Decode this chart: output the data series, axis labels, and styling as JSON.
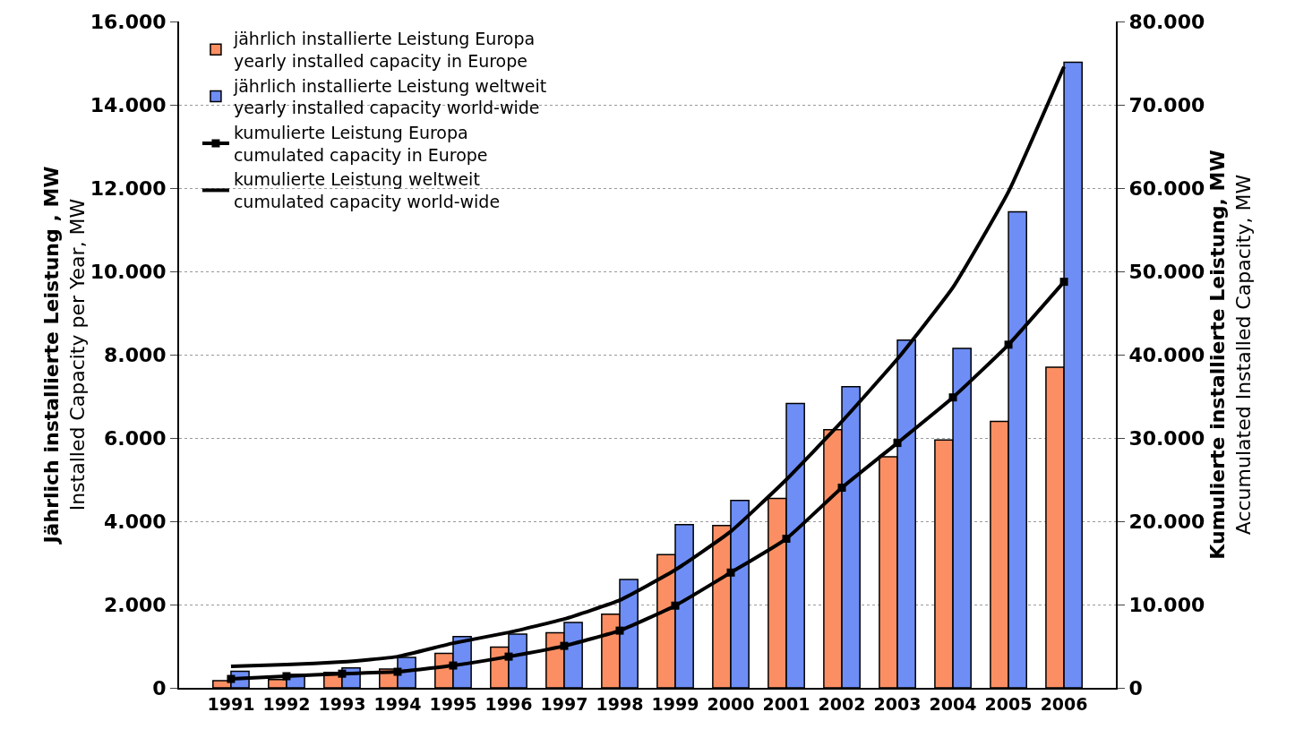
{
  "chart_data": {
    "type": "bar",
    "categories": [
      "1991",
      "1992",
      "1993",
      "1994",
      "1995",
      "1996",
      "1997",
      "1998",
      "1999",
      "2000",
      "2001",
      "2002",
      "2003",
      "2004",
      "2005",
      "2006"
    ],
    "series": [
      {
        "name": "jährlich installierte Leistung Europa\nyearly installed capacity in Europe",
        "color": "#fb8f63",
        "values": [
          170,
          200,
          370,
          450,
          830,
          980,
          1320,
          1770,
          3200,
          3900,
          4550,
          6200,
          5550,
          5950,
          6400,
          7700
        ]
      },
      {
        "name": "jährlich installierte Leistung weltweit\nyearly installed capacity world-wide",
        "color": "#6e8ef6",
        "values": [
          400,
          320,
          480,
          730,
          1230,
          1290,
          1570,
          2600,
          3920,
          4500,
          6830,
          7230,
          8350,
          8150,
          11430,
          15020
        ]
      },
      {
        "name": "kumulierte Leistung Europa\ncumulated capacity in Europe",
        "type": "line",
        "axis": "y2",
        "color": "#000000",
        "marker": "square",
        "values": [
          1070,
          1400,
          1700,
          1930,
          2680,
          3750,
          5040,
          6870,
          9870,
          13840,
          17900,
          24030,
          29400,
          34870,
          41200,
          48750
        ]
      },
      {
        "name": "kumulierte Leistung weltweit\ncumulated capacity world-wide",
        "type": "line",
        "axis": "y2",
        "color": "#000000",
        "marker": "none",
        "values": [
          2575,
          2790,
          3110,
          3750,
          5360,
          6650,
          8260,
          10520,
          14160,
          18780,
          25000,
          31970,
          39480,
          48070,
          59550,
          74570
        ]
      }
    ],
    "ylabel": "Jährlich installierte Leistung , MW\nInstalled Capacity per Year, MW",
    "y2label": "Kumulierte installierte Leistung, MW\nAccumulated Installed Capacity, MW",
    "ylim": [
      0,
      16000
    ],
    "yticks": [
      {
        "value": 0,
        "label": "0"
      },
      {
        "value": 2000,
        "label": "2.000"
      },
      {
        "value": 4000,
        "label": "4.000"
      },
      {
        "value": 6000,
        "label": "6.000"
      },
      {
        "value": 8000,
        "label": "8.000"
      },
      {
        "value": 10000,
        "label": "10.000"
      },
      {
        "value": 12000,
        "label": "12.000"
      },
      {
        "value": 14000,
        "label": "14.000"
      },
      {
        "value": 16000,
        "label": "16.000"
      }
    ],
    "y2lim": [
      0,
      80000
    ],
    "y2ticks": [
      {
        "value": 0,
        "label": "0"
      },
      {
        "value": 10000,
        "label": "10.000"
      },
      {
        "value": 20000,
        "label": "20.000"
      },
      {
        "value": 30000,
        "label": "30.000"
      },
      {
        "value": 40000,
        "label": "40.000"
      },
      {
        "value": 50000,
        "label": "50.000"
      },
      {
        "value": 60000,
        "label": "60.000"
      },
      {
        "value": 70000,
        "label": "70.000"
      },
      {
        "value": 80000,
        "label": "80.000"
      }
    ],
    "grid": "y",
    "legend": "top left"
  }
}
